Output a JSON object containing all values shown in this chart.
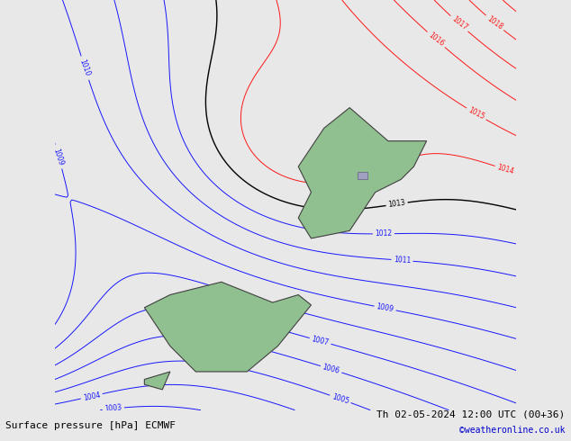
{
  "title_left": "Surface pressure [hPa] ECMWF",
  "title_right": "Th 02-05-2024 12:00 UTC (00+36)",
  "watermark": "©weatheronline.co.uk",
  "bg_color": "#e8e8e8",
  "plot_bg": "#e0e0e8",
  "figsize": [
    6.34,
    4.9
  ],
  "dpi": 100,
  "pressure_min": 980,
  "pressure_max": 1020,
  "label_fontsize": 7,
  "title_fontsize": 8
}
